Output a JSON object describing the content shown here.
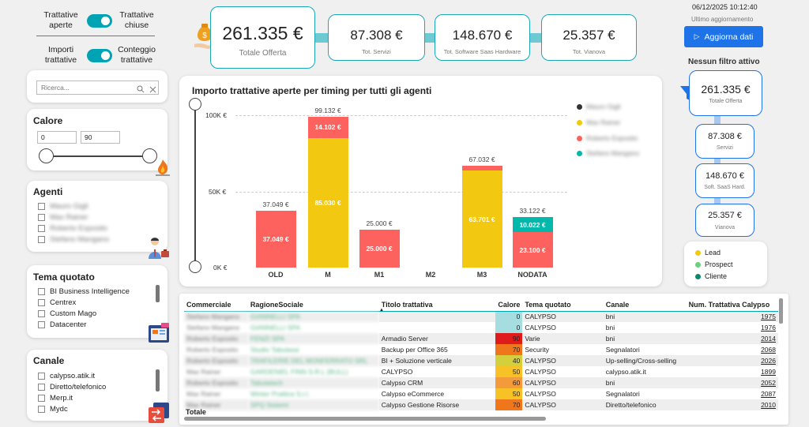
{
  "toggles": {
    "t1_left": "Trattative aperte",
    "t1_right": "Trattative chiuse",
    "t2_left": "Importi trattative",
    "t2_right": "Conteggio trattative"
  },
  "kpis": {
    "main_value": "261.335 €",
    "main_label": "Totale Offerta",
    "servizi_value": "87.308 €",
    "servizi_label": "Tot. Servizi",
    "saas_value": "148.670 €",
    "saas_label": "Tot. Software Saas Hardware",
    "vianova_value": "25.357 €",
    "vianova_label": "Tot. Vianova"
  },
  "header": {
    "timestamp": "06/12/2025 10:12:40",
    "last_update_label": "Ultimo aggiornamento",
    "refresh_button": "Aggiorna dati",
    "filter_status": "Nessun filtro attivo"
  },
  "search": {
    "placeholder": "Ricerca..."
  },
  "calore": {
    "title": "Calore",
    "min": "0",
    "max": "90"
  },
  "agenti": {
    "title": "Agenti",
    "items": [
      "Mauro Gigli",
      "Max Rainer",
      "Roberto Esposito",
      "Stefano Mangano"
    ]
  },
  "tema": {
    "title": "Tema quotato",
    "items": [
      "BI Business Intelligence",
      "Centrex",
      "Custom Mago",
      "Datacenter"
    ]
  },
  "canale": {
    "title": "Canale",
    "items": [
      "calypso.atik.it",
      "Diretto/telefonico",
      "Merp.it",
      "Mydc"
    ]
  },
  "chart_data": {
    "type": "bar",
    "title": "Importo trattative aperte per timing per tutti gli agenti",
    "categories": [
      "OLD",
      "M",
      "M1",
      "M2",
      "M3",
      "NODATA"
    ],
    "ylim": [
      0,
      100000
    ],
    "yticks": [
      "0K €",
      "50K €",
      "100K €"
    ],
    "series": [
      {
        "name": "Mauro Gigli",
        "color": "#333333",
        "values": [
          0,
          0,
          0,
          0,
          0,
          0
        ]
      },
      {
        "name": "Max Rainer",
        "color": "#f2c811",
        "values": [
          0,
          85030,
          0,
          0,
          63701,
          0
        ]
      },
      {
        "name": "Roberto Esposito",
        "color": "#fd625e",
        "values": [
          37049,
          14102,
          25000,
          0,
          3331,
          23100
        ]
      },
      {
        "name": "Stefano Mangano",
        "color": "#01b8aa",
        "values": [
          0,
          0,
          0,
          0,
          0,
          10022
        ]
      }
    ],
    "totals": [
      37049,
      99132,
      25000,
      0,
      67032,
      33122
    ],
    "segment_labels": {
      "OLD": [
        "37.049 €"
      ],
      "M": [
        "85.030 €",
        "14.102 €"
      ],
      "M1": [
        "25.000 €"
      ],
      "M3": [
        "63.701 €"
      ],
      "NODATA": [
        "23.100 €",
        "10.022 €"
      ]
    },
    "total_labels": [
      "37.049 €",
      "99.132 €",
      "25.000 €",
      "",
      "67.032 €",
      "33.122 €"
    ]
  },
  "table": {
    "columns": [
      "Commerciale",
      "RagioneSociale",
      "Titolo trattativa",
      "Calore",
      "Tema quotato",
      "Canale",
      "Num. Trattativa Calypso"
    ],
    "rows": [
      [
        "Stefano Mangano",
        "GIANNELLI SPA",
        "",
        "0",
        "CALYPSO",
        "bni",
        "1975"
      ],
      [
        "Stefano Mangano",
        "GIANNELLI SPA",
        "",
        "0",
        "CALYPSO",
        "bni",
        "1976"
      ],
      [
        "Roberto Esposito",
        "FENZI SPA",
        "Armadio Server",
        "90",
        "Varie",
        "bni",
        "2014"
      ],
      [
        "Roberto Esposito",
        "Studio Tabulassi",
        "Backup per Office 365",
        "70",
        "Security",
        "Segnalatori",
        "2068"
      ],
      [
        "Roberto Esposito",
        "TRAFILERIE DEL MONFERRATO SRL",
        "BI + Soluzione verticale",
        "40",
        "CALYPSO",
        "Up-selling/Cross-selling",
        "2026"
      ],
      [
        "Max Rainer",
        "GARDENIEL FINN S.R.L (BULL)",
        "CALYPSO",
        "50",
        "CALYPSO",
        "calypso.atik.it",
        "1899"
      ],
      [
        "Roberto Esposito",
        "Tabulatech",
        "Calypso CRM",
        "60",
        "CALYPSO",
        "bni",
        "2052"
      ],
      [
        "Max Rainer",
        "Winter Prattica S.r.l.",
        "Calypso eCommerce",
        "50",
        "CALYPSO",
        "Segnalatori",
        "2087"
      ],
      [
        "Max Rainer",
        "SPQ Sistemi",
        "Calypso Gestione Risorse",
        "70",
        "CALYPSO",
        "Diretto/telefonico",
        "2010"
      ]
    ],
    "total_label": "Totale"
  },
  "right_kpis": {
    "main_value": "261.335 €",
    "main_label": "Totale Offerta",
    "servizi_value": "87.308 €",
    "servizi_label": "Servizi",
    "saas_value": "148.670 €",
    "saas_label": "Soft. SaaS Hard.",
    "vianova_value": "25.357 €",
    "vianova_label": "Vianova"
  },
  "status_legend": [
    "Lead",
    "Prospect",
    "Cliente"
  ],
  "colors": {
    "accent": "#00a3b4",
    "button": "#1e73e8",
    "lead": "#f2c811",
    "prospect": "#6fcf7f",
    "cliente": "#0b8a6b"
  }
}
